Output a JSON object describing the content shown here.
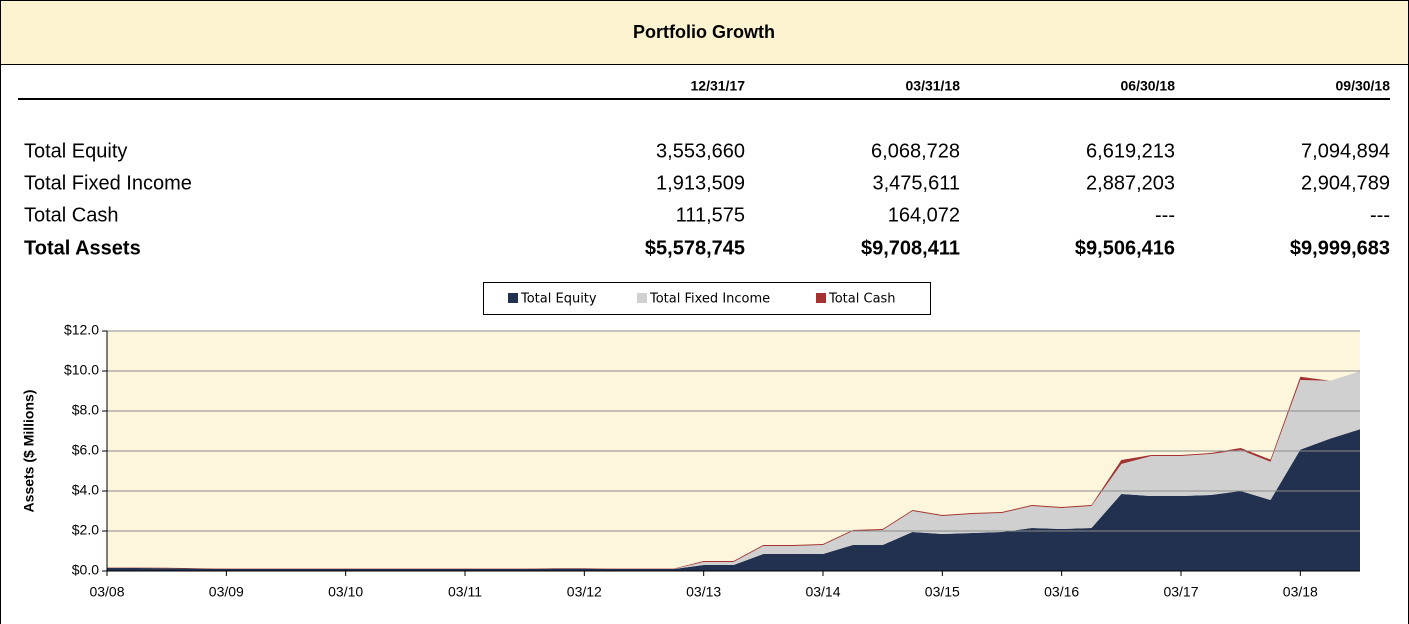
{
  "header": {
    "title": "Portfolio Growth"
  },
  "table": {
    "columns": [
      "12/31/17",
      "03/31/18",
      "06/30/18",
      "09/30/18"
    ],
    "rows": [
      {
        "label": "Total Equity",
        "cells": [
          "3,553,660",
          "6,068,728",
          "6,619,213",
          "7,094,894"
        ]
      },
      {
        "label": "Total Fixed Income",
        "cells": [
          "1,913,509",
          "3,475,611",
          "2,887,203",
          "2,904,789"
        ]
      },
      {
        "label": "Total Cash",
        "cells": [
          "111,575",
          "164,072",
          "---",
          "---"
        ]
      },
      {
        "label": "Total Assets",
        "cells": [
          "$5,578,745",
          "$9,708,411",
          "$9,506,416",
          "$9,999,683"
        ]
      }
    ]
  },
  "chart_data": {
    "type": "area",
    "stacked": true,
    "ylabel": "Assets ($ Millions)",
    "categories": [
      "03/08",
      null,
      null,
      null,
      "03/09",
      null,
      null,
      null,
      "03/10",
      null,
      null,
      null,
      "03/11",
      null,
      null,
      null,
      "03/12",
      null,
      null,
      null,
      "03/13",
      null,
      null,
      null,
      "03/14",
      null,
      null,
      null,
      "03/15",
      null,
      null,
      null,
      "03/16",
      null,
      null,
      null,
      "03/17",
      null,
      null,
      null,
      "03/18",
      null,
      null
    ],
    "series": [
      {
        "name": "Total Equity",
        "color": "#22314f",
        "values": [
          0.15,
          0.15,
          0.14,
          0.12,
          0.1,
          0.1,
          0.1,
          0.1,
          0.1,
          0.1,
          0.1,
          0.1,
          0.1,
          0.1,
          0.1,
          0.12,
          0.12,
          0.1,
          0.1,
          0.1,
          0.3,
          0.3,
          0.85,
          0.85,
          0.85,
          1.3,
          1.3,
          1.95,
          1.85,
          1.9,
          1.95,
          2.15,
          2.1,
          2.15,
          3.85,
          3.75,
          3.75,
          3.8,
          4.0,
          3.55,
          6.07,
          6.62,
          7.09
        ]
      },
      {
        "name": "Total Fixed Income",
        "color": "#d0d0d0",
        "values": [
          0,
          0,
          0,
          0,
          0,
          0,
          0,
          0,
          0,
          0,
          0,
          0,
          0,
          0,
          0,
          0,
          0,
          0,
          0,
          0,
          0.15,
          0.15,
          0.4,
          0.4,
          0.45,
          0.7,
          0.75,
          1.05,
          0.9,
          0.95,
          0.95,
          1.1,
          1.05,
          1.1,
          1.5,
          2.0,
          2.0,
          2.05,
          2.05,
          1.91,
          3.48,
          2.89,
          2.9
        ]
      },
      {
        "name": "Total Cash",
        "color": "#a33232",
        "values": [
          0.02,
          0.02,
          0.02,
          0.02,
          0.02,
          0.02,
          0.02,
          0.02,
          0.02,
          0.02,
          0.02,
          0.02,
          0.02,
          0.02,
          0.02,
          0.02,
          0.02,
          0.02,
          0.02,
          0.02,
          0.05,
          0.05,
          0.05,
          0.05,
          0.05,
          0.05,
          0.05,
          0.05,
          0.05,
          0.05,
          0.05,
          0.05,
          0.05,
          0.05,
          0.2,
          0.05,
          0.05,
          0.05,
          0.1,
          0.11,
          0.16,
          0,
          0
        ]
      }
    ],
    "ylim": [
      0,
      12
    ],
    "yticks": [
      {
        "value": 0,
        "label": "$0.0"
      },
      {
        "value": 2,
        "label": "$2.0"
      },
      {
        "value": 4,
        "label": "$4.0"
      },
      {
        "value": 6,
        "label": "$6.0"
      },
      {
        "value": 8,
        "label": "$8.0"
      },
      {
        "value": 10,
        "label": "$10.0"
      },
      {
        "value": 12,
        "label": "$12.0"
      }
    ],
    "grid": true,
    "legend": "top"
  }
}
